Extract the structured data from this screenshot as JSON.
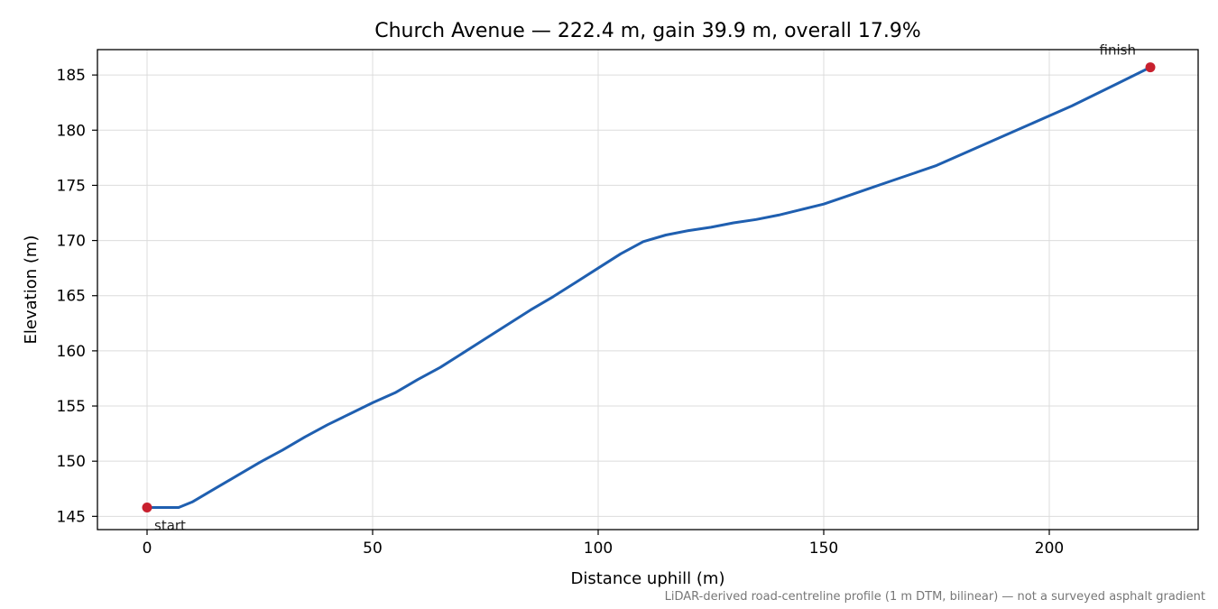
{
  "chart_data": {
    "type": "line",
    "title": "Church Avenue — 222.4 m, gain 39.9 m, overall 17.9%",
    "xlabel": "Distance uphill (m)",
    "ylabel": "Elevation (m)",
    "caption": "LiDAR-derived road-centreline profile (1 m DTM, bilinear) — not a surveyed asphalt gradient",
    "xlim": [
      -11,
      233
    ],
    "ylim": [
      143.8,
      187.3
    ],
    "x_ticks": [
      0,
      50,
      100,
      150,
      200
    ],
    "y_ticks": [
      145,
      150,
      155,
      160,
      165,
      170,
      175,
      180,
      185
    ],
    "grid": true,
    "series": [
      {
        "color": "#1f5fb0",
        "points": [
          [
            0,
            145.8
          ],
          [
            4,
            145.8
          ],
          [
            7,
            145.8
          ],
          [
            10,
            146.3
          ],
          [
            15,
            147.5
          ],
          [
            20,
            148.7
          ],
          [
            25,
            149.9
          ],
          [
            30,
            151.0
          ],
          [
            35,
            152.2
          ],
          [
            40,
            153.3
          ],
          [
            45,
            154.3
          ],
          [
            50,
            155.3
          ],
          [
            55,
            156.2
          ],
          [
            60,
            157.4
          ],
          [
            65,
            158.5
          ],
          [
            70,
            159.8
          ],
          [
            75,
            161.1
          ],
          [
            80,
            162.4
          ],
          [
            85,
            163.7
          ],
          [
            90,
            164.9
          ],
          [
            95,
            166.2
          ],
          [
            100,
            167.5
          ],
          [
            105,
            168.8
          ],
          [
            110,
            169.9
          ],
          [
            115,
            170.5
          ],
          [
            120,
            170.9
          ],
          [
            125,
            171.2
          ],
          [
            130,
            171.6
          ],
          [
            135,
            171.9
          ],
          [
            140,
            172.3
          ],
          [
            145,
            172.8
          ],
          [
            150,
            173.3
          ],
          [
            155,
            174.0
          ],
          [
            160,
            174.7
          ],
          [
            165,
            175.4
          ],
          [
            170,
            176.1
          ],
          [
            175,
            176.8
          ],
          [
            180,
            177.7
          ],
          [
            185,
            178.6
          ],
          [
            190,
            179.5
          ],
          [
            195,
            180.4
          ],
          [
            200,
            181.3
          ],
          [
            205,
            182.2
          ],
          [
            210,
            183.2
          ],
          [
            215,
            184.2
          ],
          [
            222.4,
            185.7
          ]
        ]
      }
    ],
    "markers": [
      {
        "label": "start",
        "x": 0,
        "y": 145.8,
        "color": "#c8202e"
      },
      {
        "label": "finish",
        "x": 222.4,
        "y": 185.7,
        "color": "#c8202e"
      }
    ]
  }
}
